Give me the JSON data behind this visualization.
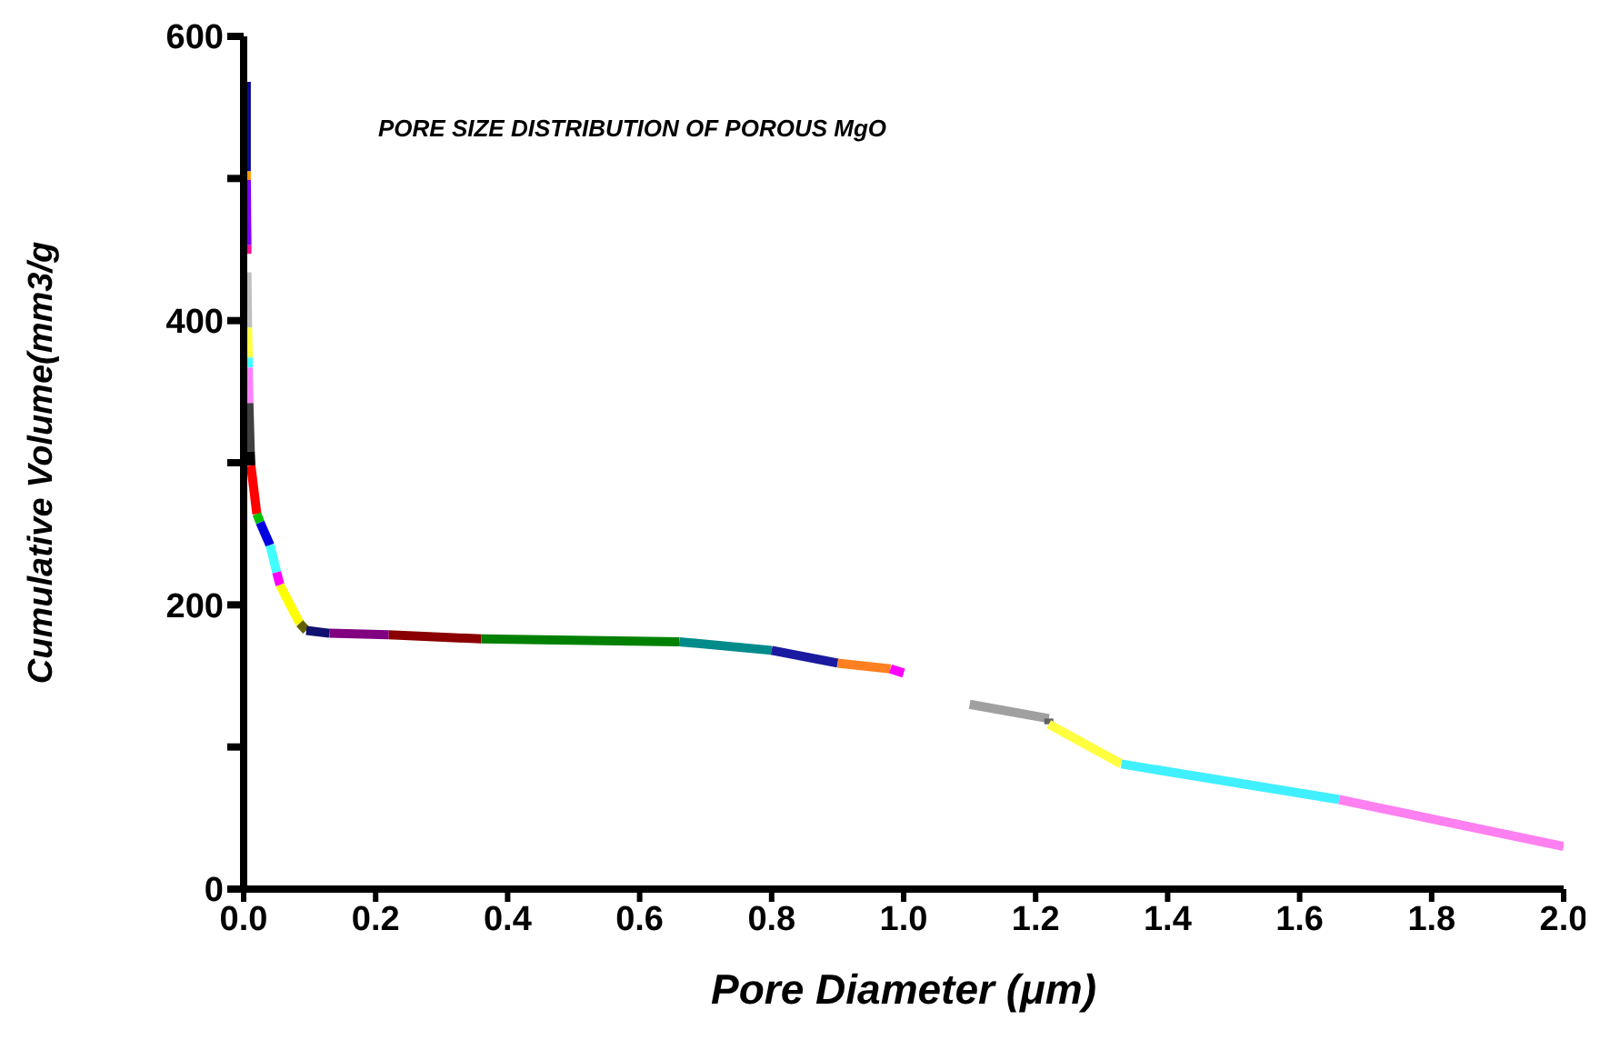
{
  "chart_data": {
    "type": "line",
    "title": "PORE SIZE DISTRIBUTION OF POROUS MgO",
    "xlabel": "Pore Diameter (μm)",
    "ylabel": "Cumulative Volume(mm3/g",
    "xlim": [
      0,
      2
    ],
    "ylim": [
      0,
      600
    ],
    "xticks": [
      {
        "value": 0,
        "label": "0.0"
      },
      {
        "value": 0.2,
        "label": "0.2"
      },
      {
        "value": 0.4,
        "label": "0.4"
      },
      {
        "value": 0.6,
        "label": "0.6"
      },
      {
        "value": 0.8,
        "label": "0.8"
      },
      {
        "value": 1,
        "label": "1.0"
      },
      {
        "value": 1.2,
        "label": "1.2"
      },
      {
        "value": 1.4,
        "label": "1.4"
      },
      {
        "value": 1.6,
        "label": "1.6"
      },
      {
        "value": 1.8,
        "label": "1.8"
      },
      {
        "value": 2,
        "label": "2.0"
      }
    ],
    "yticks": [
      0,
      {
        "value": 100,
        "label": null
      },
      200,
      {
        "value": 300,
        "label": null
      },
      400,
      {
        "value": 500,
        "label": null
      },
      600
    ],
    "grid": false,
    "marker": "none",
    "line_style": "solid",
    "series": [
      {
        "color": "#0a0a8c",
        "x": [
          0.004,
          0.004
        ],
        "values": [
          568,
          505
        ]
      },
      {
        "color": "#ff9900",
        "x": [
          0.004,
          0.004
        ],
        "values": [
          505,
          499
        ]
      },
      {
        "color": "#8000ff",
        "x": [
          0.004,
          0.005
        ],
        "values": [
          499,
          453
        ]
      },
      {
        "color": "#ff1493",
        "x": [
          0.005,
          0.005
        ],
        "values": [
          453,
          447
        ]
      },
      {
        "color": "#c0c0c0",
        "x": [
          0.005,
          0.006
        ],
        "values": [
          434,
          395
        ]
      },
      {
        "color": "#ffff40",
        "x": [
          0.006,
          0.007
        ],
        "values": [
          395,
          374
        ]
      },
      {
        "color": "#40ffff",
        "x": [
          0.007,
          0.007
        ],
        "values": [
          374,
          367
        ]
      },
      {
        "color": "#ff80ff",
        "x": [
          0.007,
          0.008
        ],
        "values": [
          367,
          342
        ]
      },
      {
        "color": "#404040",
        "x": [
          0.008,
          0.01
        ],
        "values": [
          342,
          308
        ]
      },
      {
        "color": "#000000",
        "x": [
          0.01,
          0.011
        ],
        "values": [
          308,
          298
        ]
      },
      {
        "color": "#ff0000",
        "x": [
          0.011,
          0.02
        ],
        "values": [
          298,
          264
        ]
      },
      {
        "color": "#00c000",
        "x": [
          0.02,
          0.025
        ],
        "values": [
          264,
          258
        ]
      },
      {
        "color": "#0000e0",
        "x": [
          0.025,
          0.04
        ],
        "values": [
          258,
          242
        ]
      },
      {
        "color": "#40ffff",
        "x": [
          0.04,
          0.05
        ],
        "values": [
          242,
          223
        ]
      },
      {
        "color": "#ff00ff",
        "x": [
          0.05,
          0.055
        ],
        "values": [
          223,
          214
        ]
      },
      {
        "color": "#ffff00",
        "x": [
          0.055,
          0.085
        ],
        "values": [
          214,
          187
        ]
      },
      {
        "color": "#606000",
        "x": [
          0.085,
          0.095
        ],
        "values": [
          187,
          182
        ]
      },
      {
        "color": "#101070",
        "x": [
          0.095,
          0.13
        ],
        "values": [
          182,
          180
        ]
      },
      {
        "color": "#800080",
        "x": [
          0.13,
          0.22
        ],
        "values": [
          180,
          179
        ]
      },
      {
        "color": "#8b0000",
        "x": [
          0.22,
          0.36
        ],
        "values": [
          179,
          176
        ]
      },
      {
        "color": "#008000",
        "x": [
          0.36,
          0.66
        ],
        "values": [
          176,
          174
        ]
      },
      {
        "color": "#008b8b",
        "x": [
          0.66,
          0.8
        ],
        "values": [
          174,
          168
        ]
      },
      {
        "color": "#1a1aa0",
        "x": [
          0.8,
          0.9
        ],
        "values": [
          168,
          159
        ]
      },
      {
        "color": "#ff8020",
        "x": [
          0.9,
          0.98
        ],
        "values": [
          159,
          155
        ]
      },
      {
        "color": "#ff00ff",
        "x": [
          0.98,
          1.0
        ],
        "values": [
          155,
          152
        ]
      },
      {
        "color": "#a0a0a0",
        "x": [
          1.1,
          1.22
        ],
        "values": [
          130,
          120
        ]
      },
      {
        "color": "#606060",
        "x": [
          1.22,
          1.22
        ],
        "values": [
          120,
          116
        ]
      },
      {
        "color": "#ffff40",
        "x": [
          1.22,
          1.33
        ],
        "values": [
          116,
          88
        ]
      },
      {
        "color": "#40f0ff",
        "x": [
          1.33,
          1.66
        ],
        "values": [
          88,
          63
        ]
      },
      {
        "color": "#ff80f0",
        "x": [
          1.66,
          2.0
        ],
        "values": [
          63,
          30
        ]
      }
    ]
  }
}
